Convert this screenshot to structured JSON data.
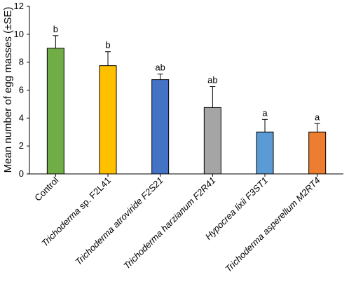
{
  "chart_data": {
    "type": "bar",
    "categories": [
      {
        "label": "Control",
        "italic": ""
      },
      {
        "label": "sp. F2L41",
        "italic": "Trichoderma"
      },
      {
        "label": "Trichoderma atroviride F2S21",
        "italic": "all"
      },
      {
        "label": "Trichoderma harzianum F2R41",
        "italic": "all"
      },
      {
        "label": "Hypocrea lixii F3ST1",
        "italic": "all"
      },
      {
        "label": "Trichoderma asperellum M2RT4",
        "italic": "all"
      }
    ],
    "values": [
      9.0,
      7.75,
      6.75,
      4.75,
      3.0,
      3.0
    ],
    "errors": [
      0.9,
      1.0,
      0.4,
      1.5,
      0.9,
      0.6
    ],
    "significance": [
      "b",
      "b",
      "ab",
      "ab",
      "a",
      "a"
    ],
    "colors": [
      "#70ad47",
      "#ffc000",
      "#4472c4",
      "#a5a5a5",
      "#5b9bd5",
      "#ed7d31"
    ],
    "ylabel": "Mean number of egg masses (±SE)",
    "xlabel": "",
    "title": "",
    "ylim": [
      0,
      12
    ],
    "yticks": [
      0,
      2,
      4,
      6,
      8,
      10,
      12
    ],
    "grid": false
  }
}
